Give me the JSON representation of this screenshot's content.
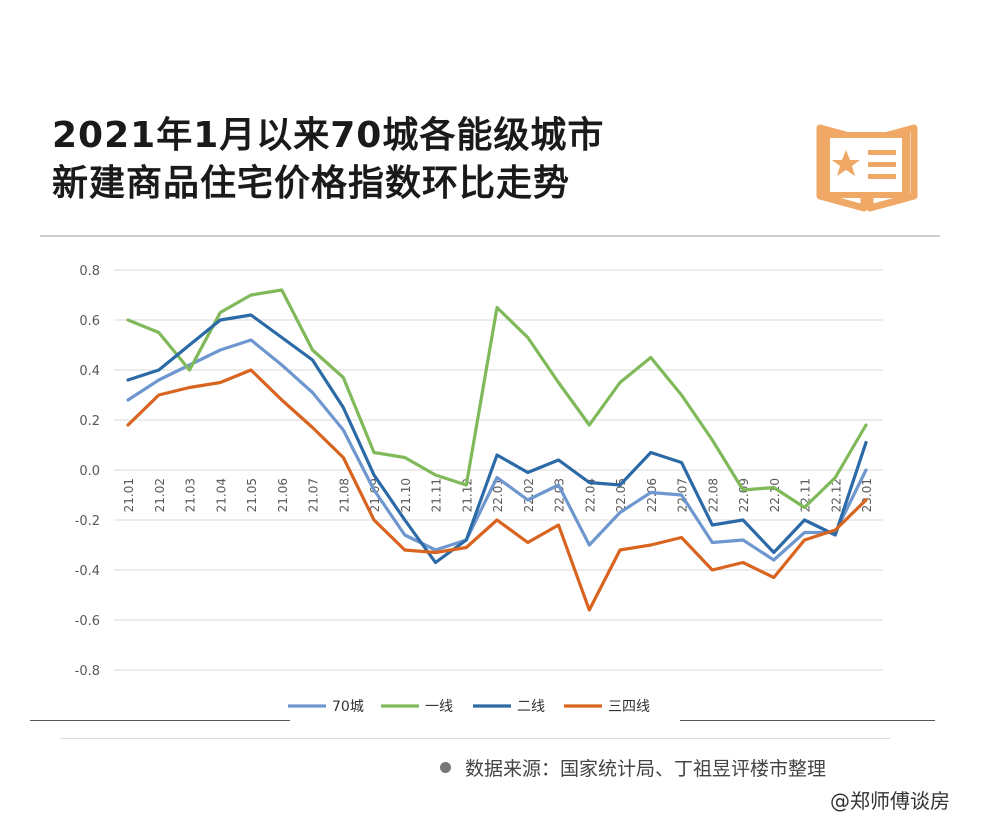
{
  "title": {
    "line1": "2021年1月以来70城各能级城市",
    "line2": "新建商品住宅价格指数环比走势"
  },
  "source": "数据来源：国家统计局、丁祖昱评楼市整理",
  "watermark": "@郑师傅谈房",
  "colors": {
    "70城": "#6f97cf",
    "一线": "#7fb95a",
    "二线": "#2b6aa6",
    "三四线": "#d8641f",
    "logo": "#f0a867"
  },
  "chart_data": {
    "type": "line",
    "categories": [
      "21.01",
      "21.02",
      "21.03",
      "21.04",
      "21.05",
      "21.06",
      "21.07",
      "21.08",
      "21.09",
      "21.10",
      "21.11",
      "21.12",
      "22.01",
      "22.02",
      "22.03",
      "22.04",
      "22.05",
      "22.06",
      "22.07",
      "22.08",
      "22.09",
      "22.10",
      "22.11",
      "22.12",
      "23.01"
    ],
    "ylim": [
      -0.8,
      0.8
    ],
    "yticks": [
      "0.8",
      "0.6",
      "0.4",
      "0.2",
      "0.0",
      "-0.2",
      "-0.4",
      "-0.6",
      "-0.8"
    ],
    "grid": true,
    "legend_position": "bottom",
    "series": [
      {
        "name": "70城",
        "values": [
          0.28,
          0.36,
          0.42,
          0.48,
          0.52,
          0.42,
          0.31,
          0.16,
          -0.08,
          -0.26,
          -0.32,
          -0.28,
          -0.03,
          -0.12,
          -0.06,
          -0.3,
          -0.17,
          -0.09,
          -0.1,
          -0.29,
          -0.28,
          -0.36,
          -0.25,
          -0.25,
          0.0
        ]
      },
      {
        "name": "一线",
        "values": [
          0.6,
          0.55,
          0.4,
          0.63,
          0.7,
          0.72,
          0.48,
          0.37,
          0.07,
          0.05,
          -0.02,
          -0.06,
          0.65,
          0.53,
          0.35,
          0.18,
          0.35,
          0.45,
          0.3,
          0.12,
          -0.08,
          -0.07,
          -0.15,
          -0.03,
          0.18
        ]
      },
      {
        "name": "二线",
        "values": [
          0.36,
          0.4,
          0.5,
          0.6,
          0.62,
          0.53,
          0.44,
          0.25,
          -0.02,
          -0.2,
          -0.37,
          -0.28,
          0.06,
          -0.01,
          0.04,
          -0.05,
          -0.06,
          0.07,
          0.03,
          -0.22,
          -0.2,
          -0.33,
          -0.2,
          -0.26,
          0.11
        ]
      },
      {
        "name": "三四线",
        "values": [
          0.18,
          0.3,
          0.33,
          0.35,
          0.4,
          0.28,
          0.17,
          0.05,
          -0.2,
          -0.32,
          -0.33,
          -0.31,
          -0.2,
          -0.29,
          -0.22,
          -0.56,
          -0.32,
          -0.3,
          -0.27,
          -0.4,
          -0.37,
          -0.43,
          -0.28,
          -0.24,
          -0.12
        ]
      }
    ]
  }
}
